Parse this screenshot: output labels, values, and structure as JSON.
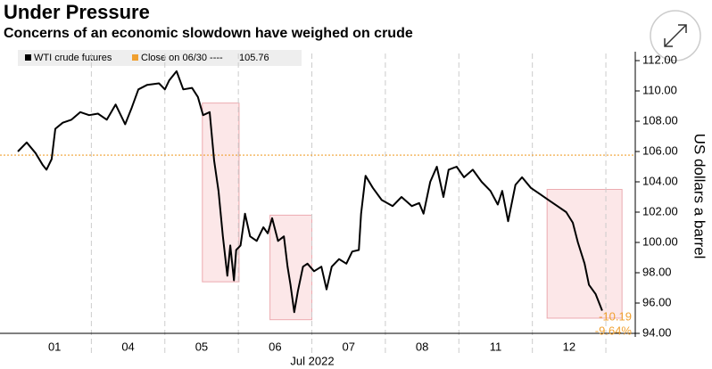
{
  "chart_data": {
    "type": "line",
    "title": "Under Pressure",
    "subtitle": "Concerns of an economic slowdown have weighed on crude",
    "y_label": "US dollars a barrel",
    "x_label": "Jul 2022",
    "xlim": [
      0,
      8.4
    ],
    "ylim": [
      94,
      112
    ],
    "xticks": [
      {
        "value": 0.5,
        "label": "01"
      },
      {
        "value": 1.5,
        "label": "04"
      },
      {
        "value": 2.5,
        "label": "05"
      },
      {
        "value": 3.5,
        "label": "06"
      },
      {
        "value": 4.5,
        "label": "07"
      },
      {
        "value": 5.5,
        "label": "08"
      },
      {
        "value": 6.5,
        "label": "11"
      },
      {
        "value": 7.5,
        "label": "12"
      }
    ],
    "yticks": [
      {
        "value": 94,
        "label": "94.00"
      },
      {
        "value": 96,
        "label": "96.00"
      },
      {
        "value": 98,
        "label": "98.00"
      },
      {
        "value": 100,
        "label": "100.00"
      },
      {
        "value": 102,
        "label": "102.00"
      },
      {
        "value": 104,
        "label": "104.00"
      },
      {
        "value": 106,
        "label": "106.00"
      },
      {
        "value": 108,
        "label": "108.00"
      },
      {
        "value": 110,
        "label": "110.00"
      },
      {
        "value": 112,
        "label": "112.00"
      }
    ],
    "series": [
      {
        "name": "WTI crude futures",
        "color": "#000000",
        "x": [
          0.0,
          0.12,
          0.24,
          0.34,
          0.39,
          0.46,
          0.51,
          0.61,
          0.73,
          0.85,
          0.97,
          1.09,
          1.21,
          1.33,
          1.46,
          1.55,
          1.64,
          1.76,
          1.92,
          2.0,
          2.06,
          2.16,
          2.25,
          2.37,
          2.45,
          2.52,
          2.61,
          2.67,
          2.73,
          2.79,
          2.85,
          2.89,
          2.94,
          2.97,
          3.03,
          3.09,
          3.16,
          3.25,
          3.34,
          3.4,
          3.46,
          3.54,
          3.62,
          3.67,
          3.71,
          3.76,
          3.81,
          3.88,
          3.94,
          4.03,
          4.13,
          4.2,
          4.27,
          4.37,
          4.47,
          4.55,
          4.64,
          4.67,
          4.73,
          4.83,
          4.95,
          5.1,
          5.22,
          5.36,
          5.46,
          5.52,
          5.61,
          5.7,
          5.79,
          5.86,
          5.97,
          6.07,
          6.19,
          6.31,
          6.43,
          6.53,
          6.59,
          6.67,
          6.77,
          6.86,
          6.98,
          7.1,
          7.22,
          7.34,
          7.46,
          7.55,
          7.62,
          7.71,
          7.77,
          7.86,
          7.95
        ],
        "values": [
          106.0,
          106.6,
          105.9,
          105.1,
          104.8,
          105.5,
          107.5,
          107.9,
          108.1,
          108.6,
          108.4,
          108.5,
          108.1,
          109.1,
          107.8,
          108.9,
          110.1,
          110.4,
          110.5,
          110.1,
          110.7,
          111.3,
          110.1,
          110.2,
          109.6,
          108.4,
          108.6,
          105.4,
          103.4,
          100.4,
          97.8,
          99.8,
          97.5,
          99.5,
          99.8,
          101.9,
          100.4,
          100.1,
          101.0,
          100.6,
          101.6,
          100.1,
          100.4,
          98.4,
          97.2,
          95.4,
          96.8,
          98.4,
          98.6,
          98.1,
          98.4,
          96.9,
          98.4,
          98.9,
          98.6,
          99.4,
          99.5,
          101.9,
          104.4,
          103.6,
          102.8,
          102.4,
          103.0,
          102.4,
          102.6,
          101.9,
          104.0,
          105.0,
          103.0,
          104.8,
          105.0,
          104.3,
          104.8,
          104.0,
          103.4,
          102.5,
          103.4,
          101.4,
          103.8,
          104.3,
          103.6,
          103.2,
          102.8,
          102.4,
          102.0,
          101.3,
          100.0,
          98.6,
          97.2,
          96.6,
          95.5
        ]
      }
    ],
    "reference": {
      "name": "Close on 06/30 ----",
      "value": 105.76,
      "color": "#f0a030"
    },
    "highlights": [
      {
        "x": [
          2.51,
          3.01
        ],
        "y": [
          97.4,
          109.2
        ]
      },
      {
        "x": [
          3.43,
          4.0
        ],
        "y": [
          94.9,
          101.8
        ]
      },
      {
        "x": [
          7.2,
          8.22
        ],
        "y": [
          95.0,
          103.5
        ]
      }
    ],
    "change_labels": [
      "-10.19",
      "-9.64%"
    ]
  }
}
